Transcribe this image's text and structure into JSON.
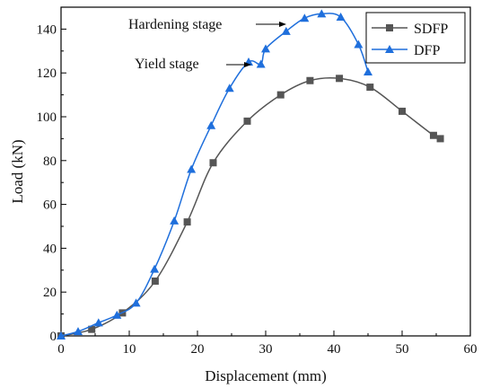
{
  "chart_data": {
    "type": "line",
    "xlabel": "Displacement (mm)",
    "ylabel": "Load (kN)",
    "xlim": [
      0,
      60
    ],
    "ylim": [
      0,
      150
    ],
    "xticks": [
      0,
      10,
      20,
      30,
      40,
      50,
      60
    ],
    "yticks": [
      0,
      20,
      40,
      60,
      80,
      100,
      120,
      140
    ],
    "xtick_labels": [
      "0",
      "10",
      "20",
      "30",
      "40",
      "50",
      "60"
    ],
    "ytick_labels": [
      "0",
      "20",
      "40",
      "60",
      "80",
      "100",
      "120",
      "140"
    ],
    "grid": false,
    "legend_position": "top-right",
    "series": [
      {
        "name": "SDFP",
        "color": "#555555",
        "marker": "square",
        "x": [
          0,
          4.5,
          9,
          13.8,
          18.5,
          22.3,
          27.3,
          32.2,
          36.5,
          40.8,
          45.3,
          50,
          54.6,
          55.6
        ],
        "y": [
          0,
          3,
          10.5,
          25,
          52,
          79,
          98,
          110,
          116.5,
          117.5,
          113.5,
          102.5,
          91.5,
          90
        ]
      },
      {
        "name": "DFP",
        "color": "#1f6fdc",
        "marker": "triangle",
        "x": [
          0,
          2.5,
          5.5,
          8.2,
          11,
          13.7,
          16.6,
          19.1,
          22,
          24.7,
          27.5,
          29.3,
          30,
          33,
          35.7,
          38.2,
          41,
          43.6,
          45
        ],
        "y": [
          0,
          2,
          6,
          9.5,
          15,
          30.5,
          52.5,
          76,
          96,
          113,
          125,
          124,
          131,
          139,
          145,
          147,
          145.5,
          133,
          120.5
        ]
      }
    ],
    "annotations": [
      {
        "text": "Hardening stage",
        "x": 31,
        "y": 143
      },
      {
        "text": "Yield stage",
        "x": 27,
        "y": 125
      }
    ]
  }
}
